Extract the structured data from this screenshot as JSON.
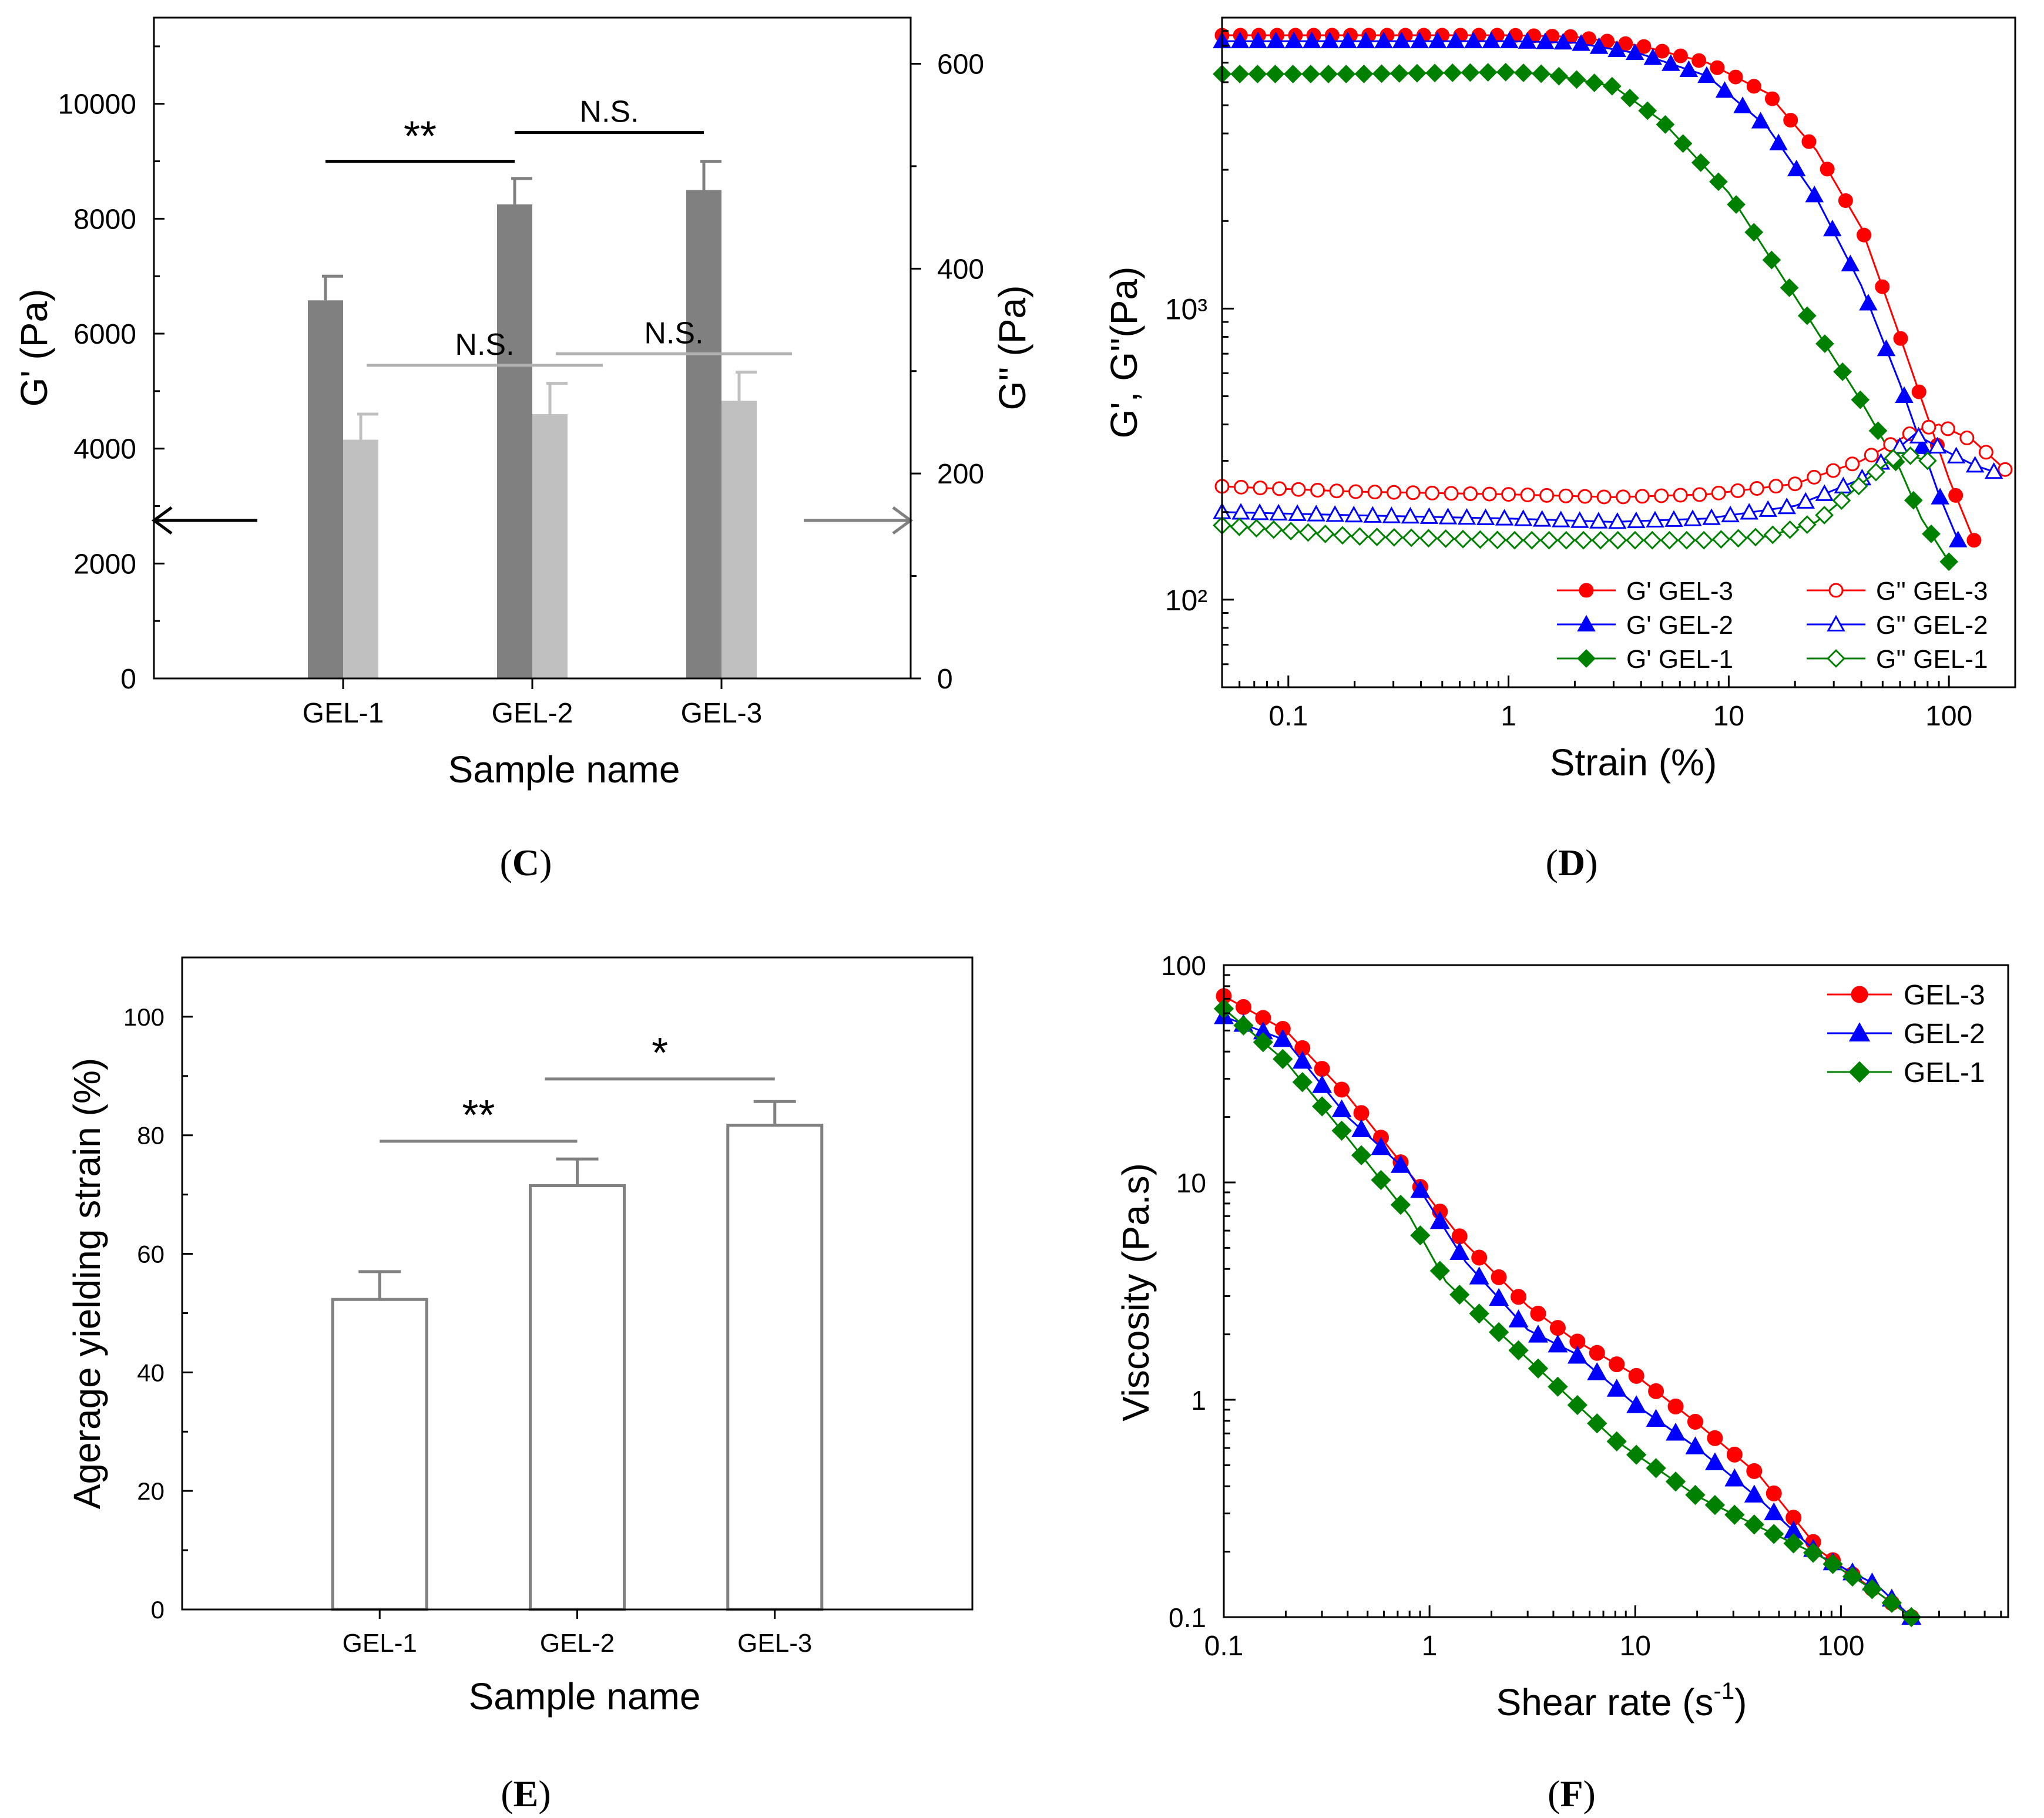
{
  "chart_data": [
    {
      "panel_label": "C",
      "type": "bar",
      "xlabel": "Sample name",
      "ylabel": "G' (Pa)",
      "y2label": "G'' (Pa)",
      "categories": [
        "GEL-1",
        "GEL-2",
        "GEL-3"
      ],
      "ylim": [
        0,
        11500
      ],
      "y_ticks": [
        0,
        2000,
        4000,
        6000,
        8000,
        10000
      ],
      "y2lim": [
        0,
        645
      ],
      "y2_ticks": [
        0,
        200,
        400,
        600
      ],
      "series": [
        {
          "name": "G'",
          "axis": "left",
          "color": "#808080",
          "values": [
            6580,
            8250,
            8500
          ],
          "errors": [
            420,
            450,
            500
          ]
        },
        {
          "name": "G''",
          "axis": "right",
          "color": "#c0c0c0",
          "values": [
            233,
            258,
            271
          ],
          "errors": [
            25,
            30,
            28
          ]
        }
      ],
      "annotations": [
        {
          "text": "**",
          "from": "GEL-1",
          "to": "GEL-2",
          "series": "G'",
          "level": 9000,
          "color": "#000000"
        },
        {
          "text": "N.S.",
          "from": "GEL-2",
          "to": "GEL-3",
          "series": "G'",
          "level": 9500,
          "color": "#000000"
        },
        {
          "text": "N.S.",
          "from": "GEL-1",
          "to": "GEL-2",
          "series": "G''",
          "level": 5450,
          "color": "#b0b0b0"
        },
        {
          "text": "N.S.",
          "from": "GEL-2",
          "to": "GEL-3",
          "series": "G''",
          "level": 5650,
          "color": "#b0b0b0"
        }
      ],
      "axis_arrows": [
        {
          "direction": "left",
          "value": 2750
        },
        {
          "direction": "right",
          "value": 2750
        }
      ]
    },
    {
      "panel_label": "D",
      "type": "line",
      "scale": "log-log",
      "xlabel": "Strain (%)",
      "ylabel": "G', G''(Pa)",
      "xlim": [
        0.05,
        200
      ],
      "ylim": [
        50,
        10000
      ],
      "x_ticks": [
        0.1,
        1,
        10,
        100
      ],
      "x_tick_labels": [
        "0.1",
        "1",
        "10",
        "100"
      ],
      "y_ticks": [
        100,
        1000
      ],
      "y_tick_labels": [
        "10²",
        "10³"
      ],
      "legend": "bottom-right",
      "series": [
        {
          "name": "G'  GEL-3",
          "color": "#ff0000",
          "marker": "circle",
          "filled": true,
          "points": [
            [
              0.05,
              8700
            ],
            [
              0.2,
              8700
            ],
            [
              1,
              8700
            ],
            [
              2,
              8600
            ],
            [
              4,
              8000
            ],
            [
              8,
              7000
            ],
            [
              15,
              5500
            ],
            [
              25,
              3500
            ],
            [
              40,
              1900
            ],
            [
              60,
              800
            ],
            [
              100,
              260
            ],
            [
              130,
              160
            ]
          ]
        },
        {
          "name": "G'  GEL-2",
          "color": "#0000ff",
          "marker": "triangle",
          "filled": true,
          "points": [
            [
              0.05,
              8300
            ],
            [
              0.2,
              8300
            ],
            [
              1,
              8300
            ],
            [
              2,
              8200
            ],
            [
              4,
              7500
            ],
            [
              8,
              6300
            ],
            [
              15,
              4200
            ],
            [
              25,
              2400
            ],
            [
              40,
              1200
            ],
            [
              60,
              550
            ],
            [
              90,
              230
            ],
            [
              110,
              160
            ]
          ]
        },
        {
          "name": "G'  GEL-1",
          "color": "#008000",
          "marker": "diamond",
          "filled": true,
          "points": [
            [
              0.05,
              6400
            ],
            [
              0.2,
              6400
            ],
            [
              1,
              6500
            ],
            [
              1.5,
              6400
            ],
            [
              3,
              5800
            ],
            [
              5,
              4400
            ],
            [
              10,
              2500
            ],
            [
              20,
              1100
            ],
            [
              40,
              480
            ],
            [
              60,
              280
            ],
            [
              75,
              190
            ],
            [
              100,
              135
            ]
          ]
        },
        {
          "name": "G''  GEL-3",
          "color": "#ff0000",
          "marker": "circle",
          "filled": false,
          "points": [
            [
              0.05,
              245
            ],
            [
              0.2,
              235
            ],
            [
              1,
              230
            ],
            [
              3,
              225
            ],
            [
              8,
              230
            ],
            [
              20,
              250
            ],
            [
              40,
              300
            ],
            [
              70,
              380
            ],
            [
              90,
              400
            ],
            [
              130,
              350
            ],
            [
              180,
              280
            ]
          ]
        },
        {
          "name": "G''  GEL-2",
          "color": "#0000ff",
          "marker": "triangle",
          "filled": false,
          "points": [
            [
              0.05,
              200
            ],
            [
              0.2,
              195
            ],
            [
              1,
              190
            ],
            [
              3,
              185
            ],
            [
              8,
              190
            ],
            [
              20,
              210
            ],
            [
              40,
              260
            ],
            [
              70,
              370
            ],
            [
              100,
              320
            ],
            [
              130,
              290
            ],
            [
              160,
              275
            ]
          ]
        },
        {
          "name": "G''  GEL-1",
          "color": "#008000",
          "marker": "diamond",
          "filled": false,
          "points": [
            [
              0.05,
              180
            ],
            [
              0.2,
              165
            ],
            [
              1,
              160
            ],
            [
              3,
              160
            ],
            [
              8,
              160
            ],
            [
              15,
              165
            ],
            [
              25,
              185
            ],
            [
              40,
              250
            ],
            [
              60,
              320
            ],
            [
              80,
              300
            ]
          ]
        }
      ]
    },
    {
      "panel_label": "E",
      "type": "bar",
      "xlabel": "Sample name",
      "ylabel": "Agerage yielding strain (%)",
      "categories": [
        "GEL-1",
        "GEL-2",
        "GEL-3"
      ],
      "ylim": [
        0,
        110
      ],
      "y_ticks": [
        0,
        20,
        40,
        60,
        80,
        100
      ],
      "series": [
        {
          "name": "Yielding strain",
          "values": [
            52.3,
            71.5,
            81.7
          ],
          "errors": [
            4.7,
            4.5,
            4.0
          ],
          "color": "#808080"
        }
      ],
      "annotations": [
        {
          "text": "**",
          "from": "GEL-1",
          "to": "GEL-2",
          "level": 79
        },
        {
          "text": "*",
          "from": "GEL-2",
          "to": "GEL-3",
          "level": 89.5
        }
      ]
    },
    {
      "panel_label": "F",
      "type": "line",
      "scale": "log-log",
      "xlabel": "Shear rate (s",
      "xlabel_sup": "-1",
      "xlabel_end": ")",
      "ylabel": "Viscosity (Pa.s)",
      "xlim": [
        0.1,
        650
      ],
      "ylim": [
        0.1,
        100
      ],
      "x_ticks": [
        0.1,
        1,
        10,
        100
      ],
      "x_tick_labels": [
        "0.1",
        "1",
        "10",
        "100"
      ],
      "y_ticks": [
        0.1,
        1,
        10,
        100
      ],
      "y_tick_labels": [
        "0.1",
        "1",
        "10",
        "100"
      ],
      "legend": "top-right",
      "series": [
        {
          "name": "GEL-3",
          "color": "#ff0000",
          "marker": "circle",
          "points": [
            [
              0.1,
              72
            ],
            [
              0.2,
              50
            ],
            [
              0.4,
              25
            ],
            [
              0.8,
              11
            ],
            [
              1.5,
              5.2
            ],
            [
              3,
              2.7
            ],
            [
              5,
              1.9
            ],
            [
              10,
              1.3
            ],
            [
              20,
              0.78
            ],
            [
              40,
              0.45
            ],
            [
              80,
              0.2
            ],
            [
              150,
              0.13
            ],
            [
              220,
              0.1
            ]
          ]
        },
        {
          "name": "GEL-2",
          "color": "#0000ff",
          "marker": "triangle",
          "points": [
            [
              0.1,
              58
            ],
            [
              0.2,
              45
            ],
            [
              0.4,
              20
            ],
            [
              0.8,
              11
            ],
            [
              1.5,
              4.3
            ],
            [
              3,
              2.1
            ],
            [
              5,
              1.65
            ],
            [
              10,
              0.95
            ],
            [
              20,
              0.6
            ],
            [
              40,
              0.35
            ],
            [
              80,
              0.19
            ],
            [
              150,
              0.14
            ],
            [
              220,
              0.1
            ]
          ]
        },
        {
          "name": "GEL-1",
          "color": "#008000",
          "marker": "diamond",
          "points": [
            [
              0.1,
              63
            ],
            [
              0.2,
              36
            ],
            [
              0.4,
              16
            ],
            [
              0.8,
              7
            ],
            [
              1.2,
              3.5
            ],
            [
              2,
              2.2
            ],
            [
              4,
              1.2
            ],
            [
              8,
              0.65
            ],
            [
              20,
              0.36
            ],
            [
              40,
              0.26
            ],
            [
              80,
              0.19
            ],
            [
              150,
              0.13
            ],
            [
              220,
              0.1
            ]
          ]
        }
      ]
    }
  ]
}
